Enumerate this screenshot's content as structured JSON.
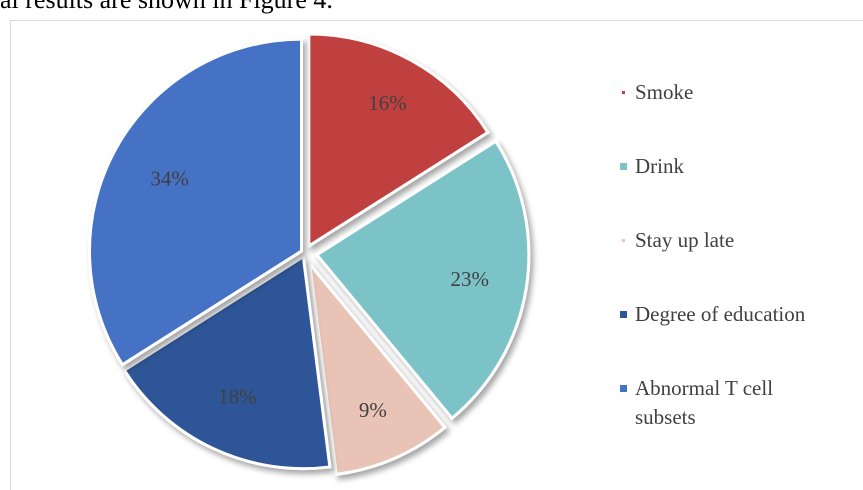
{
  "caption_text": "al results are shown in Figure 4.",
  "chart_data": {
    "type": "pie",
    "title": "",
    "slices": [
      {
        "label": "Smoke",
        "value": 16,
        "display": "16%",
        "color": "#c0413f",
        "swatch": "small"
      },
      {
        "label": "Drink",
        "value": 23,
        "display": "23%",
        "color": "#7cc3c8",
        "swatch": "normal"
      },
      {
        "label": "Stay up late",
        "value": 9,
        "display": "9%",
        "color": "#e9c4b6",
        "swatch": "small"
      },
      {
        "label": "Degree of education",
        "value": 18,
        "display": "18%",
        "color": "#2d5597",
        "swatch": "normal"
      },
      {
        "label": "Abnormal T cell\nsubsets",
        "value": 34,
        "display": "34%",
        "color": "#4472c4",
        "swatch": "normal"
      }
    ],
    "legend_position": "right",
    "exploded": true
  }
}
